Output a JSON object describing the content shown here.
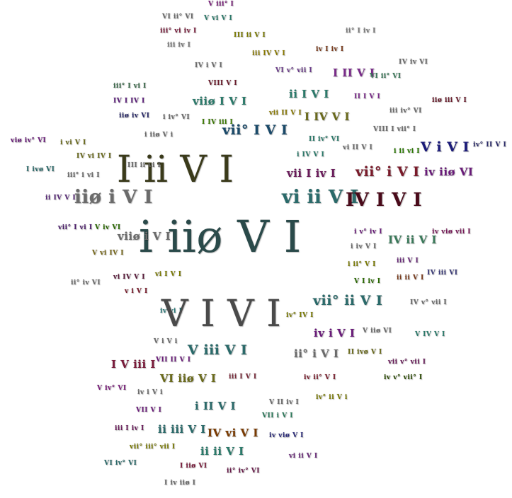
{
  "words": [
    {
      "text": "V iii° I",
      "color": "#7a1f7a",
      "size": 1
    },
    {
      "text": "VI ii° VI",
      "color": "#6b6b6b",
      "size": 1
    },
    {
      "text": "V vi V I",
      "color": "#2a7a6a",
      "size": 1
    },
    {
      "text": "iii° vi iv I",
      "color": "#7a1a3a",
      "size": 1
    },
    {
      "text": "III ii V I",
      "color": "#7a7a00",
      "size": 1
    },
    {
      "text": "ii° I iv I",
      "color": "#7a7a7a",
      "size": 1
    },
    {
      "text": "iii iv I",
      "color": "#7a7a7a",
      "size": 1
    },
    {
      "text": "iii IV V I",
      "color": "#8a7a00",
      "size": 1
    },
    {
      "text": "iv I iv I",
      "color": "#7a3a1a",
      "size": 1
    },
    {
      "text": "IV iv VI",
      "color": "#6b6b6b",
      "size": 1
    },
    {
      "text": "IV i V I",
      "color": "#6b6b6b",
      "size": 1
    },
    {
      "text": "VI v° vii I",
      "color": "#6a3a8a",
      "size": 1
    },
    {
      "text": "I II V I",
      "color": "#7a2a8a",
      "size": 2
    },
    {
      "text": "VI ii° VI",
      "color": "#3a7a5a",
      "size": 1
    },
    {
      "text": "VIII V I",
      "color": "#6a1a2a",
      "size": 1
    },
    {
      "text": "iii° I vi I",
      "color": "#3a6a4a",
      "size": 1
    },
    {
      "text": "ii I V I",
      "color": "#2a7a6a",
      "size": 2
    },
    {
      "text": "II I V I",
      "color": "#7a2a8a",
      "size": 1
    },
    {
      "text": "IV I IV I",
      "color": "#5a1a7a",
      "size": 1
    },
    {
      "text": "viiø I V I",
      "color": "#2a7a6a",
      "size": 2
    },
    {
      "text": "iiø iii V I",
      "color": "#6a1a2a",
      "size": 1
    },
    {
      "text": "iiø iv VI",
      "color": "#2a2a6a",
      "size": 1
    },
    {
      "text": "i iv° VI",
      "color": "#6b6b6b",
      "size": 1
    },
    {
      "text": "I IV iii I",
      "color": "#3a7a00",
      "size": 1
    },
    {
      "text": "vii° I V I",
      "color": "#1a4a6a",
      "size": 3
    },
    {
      "text": "vii II V I",
      "color": "#8a7a00",
      "size": 1
    },
    {
      "text": "I IV V I",
      "color": "#6a6a1a",
      "size": 2
    },
    {
      "text": "iii iv° VI",
      "color": "#6b6b6b",
      "size": 1
    },
    {
      "text": "VIII I vii° I",
      "color": "#6b6b6b",
      "size": 1
    },
    {
      "text": "viø iv° VI",
      "color": "#6a1a7a",
      "size": 1
    },
    {
      "text": "i iiø V i",
      "color": "#6b6b6b",
      "size": 1
    },
    {
      "text": "II iv° VI",
      "color": "#2a7a6a",
      "size": 1
    },
    {
      "text": "i vi V I",
      "color": "#6a6a1a",
      "size": 1
    },
    {
      "text": "vi II V I",
      "color": "#6b6b6b",
      "size": 1
    },
    {
      "text": "i ii vi I",
      "color": "#2a7a00",
      "size": 1
    },
    {
      "text": "V i V I",
      "color": "#1a1a7a",
      "size": 3
    },
    {
      "text": "iv° II V I",
      "color": "#2a2a6a",
      "size": 1
    },
    {
      "text": "IV vi IV I",
      "color": "#6a6a1a",
      "size": 1
    },
    {
      "text": "I ii V I",
      "color": "#3a3a1a",
      "size": 5
    },
    {
      "text": "i IV V I",
      "color": "#2a7a6a",
      "size": 1
    },
    {
      "text": "I ivø VI",
      "color": "#2a6a6a",
      "size": 1
    },
    {
      "text": "III ii vi I",
      "color": "#6b6b6b",
      "size": 1
    },
    {
      "text": "vii I iv I",
      "color": "#6a1a5a",
      "size": 2
    },
    {
      "text": "vii° i V I",
      "color": "#7a1a2a",
      "size": 3
    },
    {
      "text": "iv iiø VI",
      "color": "#6a1a7a",
      "size": 2
    },
    {
      "text": "iii° i vi I",
      "color": "#6b6b6b",
      "size": 1
    },
    {
      "text": "ii IV V I",
      "color": "#5a2a7a",
      "size": 1
    },
    {
      "text": "iiø i V I",
      "color": "#6b6b6b",
      "size": 4
    },
    {
      "text": "vi ii V I",
      "color": "#2a6a6a",
      "size": 4
    },
    {
      "text": "IV I V I",
      "color": "#4a0a1a",
      "size": 4
    },
    {
      "text": "vii° I vi I",
      "color": "#4a1a6a",
      "size": 1
    },
    {
      "text": "V iv VI",
      "color": "#2a6a00",
      "size": 1
    },
    {
      "text": "i iiø V I",
      "color": "#2a4a4a",
      "size": 6
    },
    {
      "text": "viiø i V I",
      "color": "#6b6b6b",
      "size": 2
    },
    {
      "text": "i v° iv I",
      "color": "#6a1a7a",
      "size": 1
    },
    {
      "text": "iv viø vii I",
      "color": "#7a1a5a",
      "size": 1
    },
    {
      "text": "IV ii V I",
      "color": "#3a7a5a",
      "size": 2
    },
    {
      "text": "V vi IV I",
      "color": "#7a6a1a",
      "size": 1
    },
    {
      "text": "i iv V I",
      "color": "#6b6b6b",
      "size": 1
    },
    {
      "text": "i ii° V I",
      "color": "#7a7a00",
      "size": 1
    },
    {
      "text": "iii V I",
      "color": "#6a2a7a",
      "size": 1
    },
    {
      "text": "vi IV V I",
      "color": "#5a1a3a",
      "size": 1
    },
    {
      "text": "vi I V I",
      "color": "#7a7a00",
      "size": 1
    },
    {
      "text": "ii° iv VI",
      "color": "#6b6b6b",
      "size": 1
    },
    {
      "text": "V I iv I",
      "color": "#2a6a00",
      "size": 1
    },
    {
      "text": "ii ii V I",
      "color": "#7a3a1a",
      "size": 1
    },
    {
      "text": "IV iii VI",
      "color": "#3a3a7a",
      "size": 1
    },
    {
      "text": "v i V I",
      "color": "#7a1a2a",
      "size": 1
    },
    {
      "text": "iv vi I",
      "color": "#2a7a7a",
      "size": 1
    },
    {
      "text": "V I V I",
      "color": "#4a4a4a",
      "size": 5
    },
    {
      "text": "vii° ii V I",
      "color": "#2a6a6a",
      "size": 3
    },
    {
      "text": "IV v° vii I",
      "color": "#6b6b6b",
      "size": 1
    },
    {
      "text": "iv° IV I",
      "color": "#7a7a00",
      "size": 1
    },
    {
      "text": "iv i V I",
      "color": "#6a1a7a",
      "size": 2
    },
    {
      "text": "V iiø VI",
      "color": "#6b6b6b",
      "size": 1
    },
    {
      "text": "V IV V I",
      "color": "#2a7a6a",
      "size": 1
    },
    {
      "text": "V i V i",
      "color": "#6b6b6b",
      "size": 1
    },
    {
      "text": "V iii V I",
      "color": "#2a6a6a",
      "size": 3
    },
    {
      "text": "ii° i V I",
      "color": "#6b6b6b",
      "size": 2
    },
    {
      "text": "II ivø V I",
      "color": "#6a6a1a",
      "size": 1
    },
    {
      "text": "I V iii I",
      "color": "#7a1a3a",
      "size": 2
    },
    {
      "text": "VII II V I",
      "color": "#6a1a7a",
      "size": 1
    },
    {
      "text": "VI iiø V I",
      "color": "#6a6a1a",
      "size": 2
    },
    {
      "text": "iii I V I",
      "color": "#7a2a3a",
      "size": 1
    },
    {
      "text": "iv ii° V I",
      "color": "#7a1a2a",
      "size": 1
    },
    {
      "text": "vii v° vii I",
      "color": "#6a1a5a",
      "size": 1
    },
    {
      "text": "iv v° vii° I",
      "color": "#2a4a00",
      "size": 1
    },
    {
      "text": "V iv° VI",
      "color": "#7a1a7a",
      "size": 1
    },
    {
      "text": "iv° ii V i",
      "color": "#7a7a00",
      "size": 1
    },
    {
      "text": "iv i V i",
      "color": "#6b6b6b",
      "size": 1
    },
    {
      "text": "i II V I",
      "color": "#2a6a6a",
      "size": 2
    },
    {
      "text": "V II iv I",
      "color": "#6b6b6b",
      "size": 1
    },
    {
      "text": "VII V I",
      "color": "#6a1a7a",
      "size": 1
    },
    {
      "text": "VII i V I",
      "color": "#2a7a5a",
      "size": 1
    },
    {
      "text": "iii I iv I",
      "color": "#6a1a5a",
      "size": 1
    },
    {
      "text": "ii iii V I",
      "color": "#2a6a6a",
      "size": 2
    },
    {
      "text": "IV vi V I",
      "color": "#7a3a00",
      "size": 2
    },
    {
      "text": "iv viø V I",
      "color": "#2a2a7a",
      "size": 1
    },
    {
      "text": "vii° iii° vii I",
      "color": "#7a7a00",
      "size": 1
    },
    {
      "text": "ii ii V I",
      "color": "#2a7a6a",
      "size": 2
    },
    {
      "text": "vi ii V I",
      "color": "#6a2a7a",
      "size": 1
    },
    {
      "text": "VI iv° VI",
      "color": "#2a6a6a",
      "size": 1
    },
    {
      "text": "I iiø VI",
      "color": "#7a1a3a",
      "size": 1
    },
    {
      "text": "ii° iv° VI",
      "color": "#6a1a4a",
      "size": 1
    },
    {
      "text": "I iv iiø I",
      "color": "#6b6b6b",
      "size": 1
    }
  ]
}
